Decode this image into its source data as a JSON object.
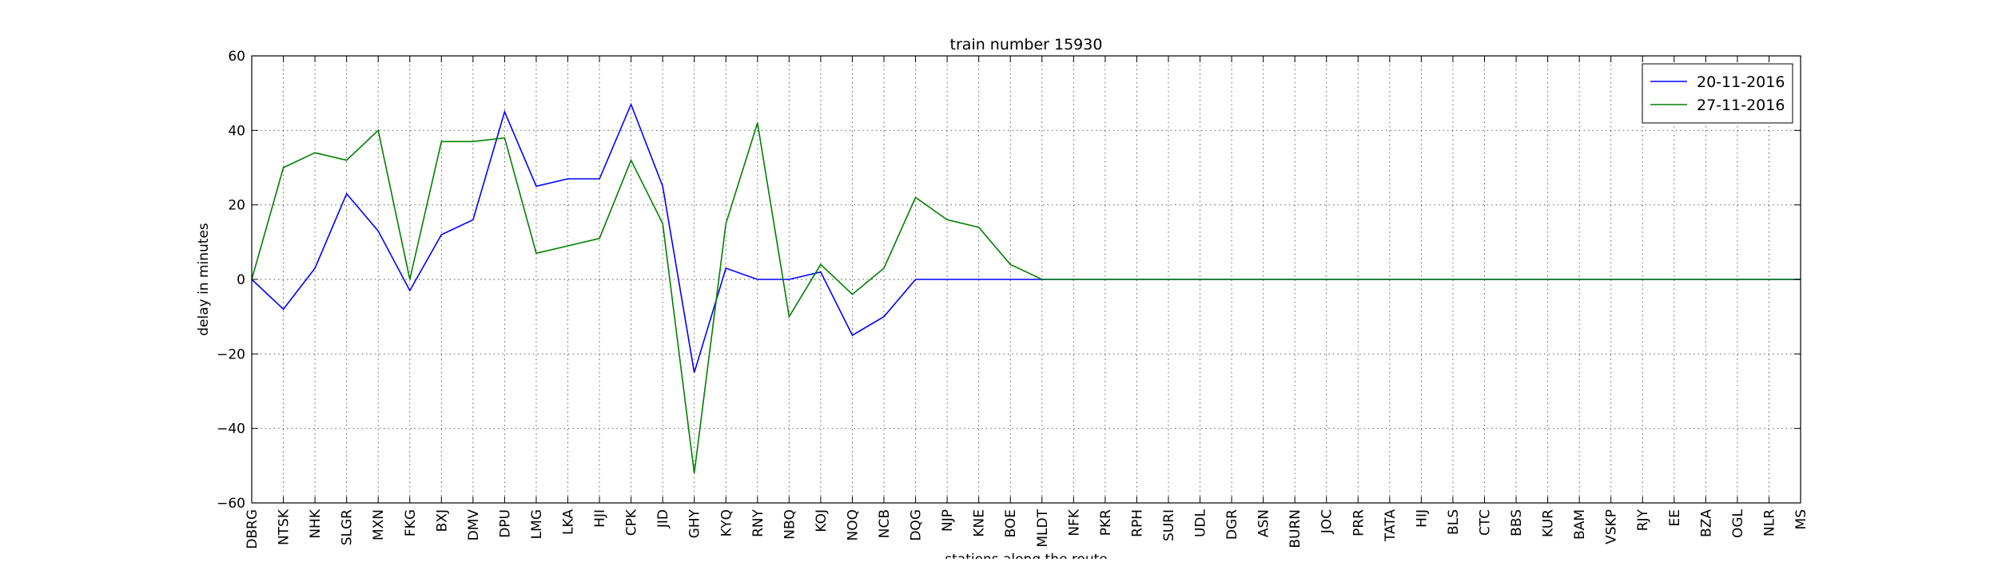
{
  "chart_data": {
    "type": "line",
    "title": "train number 15930",
    "xlabel": "stations along the route",
    "ylabel": "delay in minutes",
    "ylim": [
      -60,
      60
    ],
    "yticks": [
      -60,
      -40,
      -20,
      0,
      20,
      40,
      60
    ],
    "grid": true,
    "legend_position": "top-right",
    "categories": [
      "DBRG",
      "NTSK",
      "NHK",
      "SLGR",
      "MXN",
      "FKG",
      "BXJ",
      "DMV",
      "DPU",
      "LMG",
      "LKA",
      "HJI",
      "CPK",
      "JID",
      "GHY",
      "KYQ",
      "RNY",
      "NBQ",
      "KOJ",
      "NOQ",
      "NCB",
      "DQG",
      "NJP",
      "KNE",
      "BOE",
      "MLDT",
      "NFK",
      "PKR",
      "RPH",
      "SURI",
      "UDL",
      "DGR",
      "ASN",
      "BURN",
      "JOC",
      "PRR",
      "TATA",
      "HIJ",
      "BLS",
      "CTC",
      "BBS",
      "KUR",
      "BAM",
      "VSKP",
      "RJY",
      "EE",
      "BZA",
      "OGL",
      "NLR",
      "MS"
    ],
    "series": [
      {
        "name": "20-11-2016",
        "color": "#0000ff",
        "values": [
          0,
          -8,
          3,
          23,
          13,
          -3,
          12,
          16,
          45,
          25,
          27,
          27,
          47,
          25,
          -25,
          3,
          0,
          0,
          2,
          -15,
          -10,
          0,
          0,
          0,
          0,
          0,
          0,
          0,
          0,
          0,
          0,
          0,
          0,
          0,
          0,
          0,
          0,
          0,
          0,
          0,
          0,
          0,
          0,
          0,
          0,
          0,
          0,
          0,
          0,
          0
        ]
      },
      {
        "name": "27-11-2016",
        "color": "#008000",
        "values": [
          0,
          30,
          34,
          32,
          40,
          0,
          37,
          37,
          38,
          7,
          9,
          11,
          32,
          15,
          -52,
          15,
          42,
          -10,
          4,
          -4,
          3,
          22,
          16,
          14,
          4,
          0,
          0,
          0,
          0,
          0,
          0,
          0,
          0,
          0,
          0,
          0,
          0,
          0,
          0,
          0,
          0,
          0,
          0,
          0,
          0,
          0,
          0,
          0,
          0,
          0
        ]
      }
    ]
  }
}
